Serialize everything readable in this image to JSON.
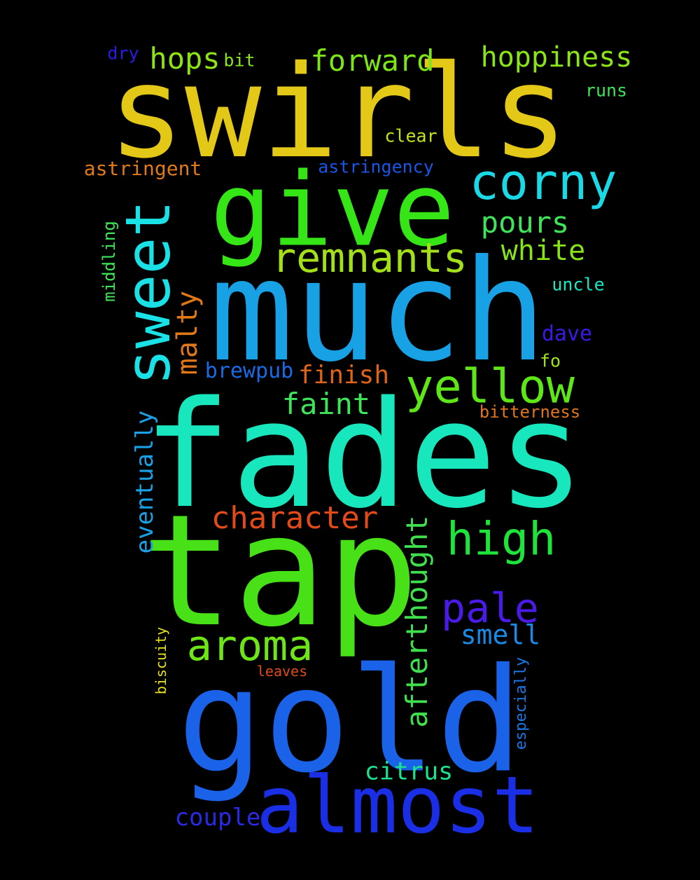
{
  "words": [
    {
      "text": "swirls",
      "color": "#e3c817"
    },
    {
      "text": "much",
      "color": "#18a1e5"
    },
    {
      "text": "fades",
      "color": "#18e6bd"
    },
    {
      "text": "tap",
      "color": "#48e016"
    },
    {
      "text": "gold",
      "color": "#1a62e8"
    },
    {
      "text": "give",
      "color": "#35e516"
    },
    {
      "text": "almost",
      "color": "#1a2fe5"
    },
    {
      "text": "sweet",
      "color": "#1ae1e5"
    },
    {
      "text": "corny",
      "color": "#1ad9e6"
    },
    {
      "text": "yellow",
      "color": "#5ee617"
    },
    {
      "text": "remnants",
      "color": "#a4e017"
    },
    {
      "text": "high",
      "color": "#1ee33a"
    },
    {
      "text": "aroma",
      "color": "#6ee517"
    },
    {
      "text": "pale",
      "color": "#4a1ae6"
    },
    {
      "text": "forward",
      "color": "#7de517"
    },
    {
      "text": "hoppiness",
      "color": "#8ae417"
    },
    {
      "text": "hops",
      "color": "#8ee317"
    },
    {
      "text": "pours",
      "color": "#3ee35a"
    },
    {
      "text": "white",
      "color": "#86e317"
    },
    {
      "text": "character",
      "color": "#e24b18"
    },
    {
      "text": "afterthought",
      "color": "#3ee04d"
    },
    {
      "text": "malty",
      "color": "#e07818"
    },
    {
      "text": "faint",
      "color": "#3ee35a"
    },
    {
      "text": "finish",
      "color": "#e06418"
    },
    {
      "text": "smell",
      "color": "#1a8ae6"
    },
    {
      "text": "citrus",
      "color": "#1ae38e"
    },
    {
      "text": "couple",
      "color": "#2a2ae6"
    },
    {
      "text": "eventually",
      "color": "#1aa1e5"
    },
    {
      "text": "astringent",
      "color": "#e07a18"
    },
    {
      "text": "astringency",
      "color": "#1a56e6"
    },
    {
      "text": "brewpub",
      "color": "#1a6ae6"
    },
    {
      "text": "dave",
      "color": "#3a1ae6"
    },
    {
      "text": "uncle",
      "color": "#1ae6c1"
    },
    {
      "text": "runs",
      "color": "#3ee35a"
    },
    {
      "text": "clear",
      "color": "#c6e317"
    },
    {
      "text": "bitterness",
      "color": "#e0761c"
    },
    {
      "text": "fo",
      "color": "#9ee317"
    },
    {
      "text": "dry",
      "color": "#2a1ae6"
    },
    {
      "text": "bit",
      "color": "#8ae417"
    },
    {
      "text": "middling",
      "color": "#3ee35a"
    },
    {
      "text": "especially",
      "color": "#1a78e6"
    },
    {
      "text": "biscuity",
      "color": "#e6e017"
    },
    {
      "text": "leaves",
      "color": "#e24b18"
    }
  ]
}
